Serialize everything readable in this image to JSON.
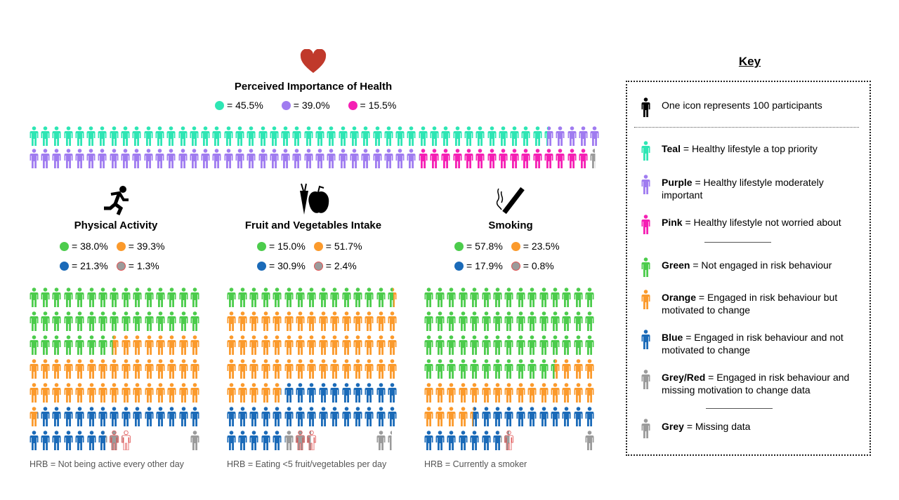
{
  "colors": {
    "teal": "#2ee6b4",
    "purple": "#a07cf0",
    "pink": "#f51fb4",
    "green": "#4ccc4c",
    "orange": "#fb9a2c",
    "blue": "#1a6ab8",
    "grey": "#9b9b9b",
    "greyred": "#9b9b9b",
    "black": "#000000",
    "heart": "#c0392b"
  },
  "health": {
    "title": "Perceived Importance of Health",
    "icon": "heart-icon",
    "legend": [
      {
        "color": "teal",
        "label": "= 45.5%",
        "pct": 45.5
      },
      {
        "color": "purple",
        "label": "= 39.0%",
        "pct": 39.0
      },
      {
        "color": "pink",
        "label": "= 15.5%",
        "pct": 15.5
      }
    ],
    "icon_total": 99.5,
    "missing_icons": 0.6
  },
  "panels": [
    {
      "title": "Physical Activity",
      "icon": "running-icon",
      "legend": [
        {
          "color": "green",
          "label": "= 38.0%",
          "pct": 38.0
        },
        {
          "color": "orange",
          "label": "= 39.3%",
          "pct": 39.3
        },
        {
          "color": "blue",
          "label": "= 21.3%",
          "pct": 21.3
        },
        {
          "color": "greyred",
          "label": "= 1.3%",
          "pct": 1.3
        }
      ],
      "icon_total": 98.2,
      "missing_icons": 1,
      "note": "HRB = Not being active every other day"
    },
    {
      "title": "Fruit and Vegetables Intake",
      "icon": "fruit-vegetables-icon",
      "legend": [
        {
          "color": "green",
          "label": "= 15.0%",
          "pct": 15.0
        },
        {
          "color": "orange",
          "label": "= 51.7%",
          "pct": 51.7
        },
        {
          "color": "blue",
          "label": "= 30.9%",
          "pct": 30.9
        },
        {
          "color": "greyred",
          "label": "= 2.4%",
          "pct": 2.4
        }
      ],
      "icon_total": 97.4,
      "missing_icons": 1.4,
      "note": "HRB = Eating <5 fruit/vegetables per day"
    },
    {
      "title": "Smoking",
      "icon": "smoking-icon",
      "legend": [
        {
          "color": "green",
          "label": "= 57.8%",
          "pct": 57.8
        },
        {
          "color": "orange",
          "label": "= 23.5%",
          "pct": 23.5
        },
        {
          "color": "blue",
          "label": "= 17.9%",
          "pct": 17.9
        },
        {
          "color": "greyred",
          "label": "= 0.8%",
          "pct": 0.8
        }
      ],
      "icon_total": 97.6,
      "missing_icons": 1,
      "note": "HRB = Currently a smoker"
    }
  ],
  "key": {
    "title": "Key",
    "scale": "One icon represents 100 participants",
    "items": [
      {
        "color": "teal",
        "name": "Teal",
        "desc": "= Healthy lifestyle a top priority"
      },
      {
        "color": "purple",
        "name": "Purple",
        "desc": "= Healthy lifestyle moderately important"
      },
      {
        "color": "pink",
        "name": "Pink",
        "desc": "= Healthy lifestyle not worried about"
      },
      {
        "color": "green",
        "name": "Green",
        "desc": "= Not engaged in risk behaviour"
      },
      {
        "color": "orange",
        "name": "Orange",
        "desc": "= Engaged in risk behaviour but motivated to change"
      },
      {
        "color": "blue",
        "name": "Blue",
        "desc": "= Engaged in risk behaviour and not motivated to change"
      },
      {
        "color": "greyred",
        "name": "Grey/Red",
        "desc": "= Engaged in risk behaviour and missing motivation to change data"
      },
      {
        "color": "grey",
        "name": "Grey",
        "desc": "= Missing data"
      }
    ]
  }
}
